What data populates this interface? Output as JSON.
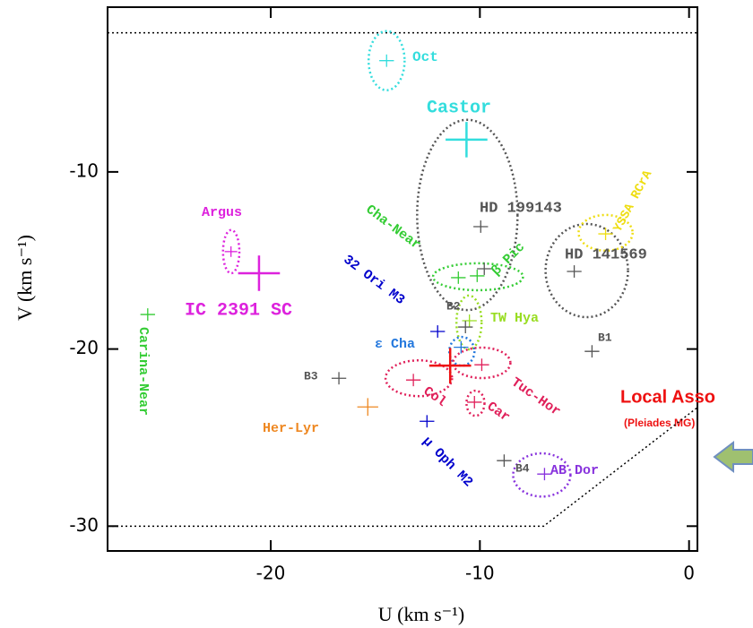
{
  "chart_data": {
    "type": "scatter",
    "xlabel": "U (km s⁻¹)",
    "ylabel": "V (km s⁻¹)",
    "xlim": [
      -27.8,
      0.4
    ],
    "ylim": [
      -31.4,
      -0.7
    ],
    "xticks": [
      -20,
      -10,
      0
    ],
    "yticks": [
      -10,
      -20,
      -30
    ],
    "points": [
      {
        "x": -14.46,
        "y": -3.72,
        "size": 0.35,
        "color": "#33dddd",
        "label": "Oct"
      },
      {
        "x": -10.64,
        "y": -8.18,
        "size": 1.0,
        "color": "#33dddd",
        "label": "Castor"
      },
      {
        "x": -9.96,
        "y": -13.09,
        "size": 0.35,
        "color": "#555555",
        "label": "HD 199143"
      },
      {
        "x": -3.99,
        "y": -13.5,
        "size": 0.35,
        "color": "#eedd11",
        "label": "YSSA RCrA"
      },
      {
        "x": -5.49,
        "y": -15.62,
        "size": 0.35,
        "color": "#555555",
        "label": "HD 141569"
      },
      {
        "x": -11.03,
        "y": -15.97,
        "size": 0.35,
        "color": "#33cc33",
        "label": "Cha-Near"
      },
      {
        "x": -10.13,
        "y": -15.87,
        "size": 0.35,
        "color": "#33cc33",
        "label": "β Pic"
      },
      {
        "x": -9.79,
        "y": -15.47,
        "size": 0.35,
        "color": "#555555"
      },
      {
        "x": -21.9,
        "y": -14.5,
        "size": 0.3,
        "color": "#dd22dd",
        "label": "Argus"
      },
      {
        "x": -20.56,
        "y": -15.72,
        "size": 1.0,
        "color": "#dd22dd",
        "label": "IC 2391 SC"
      },
      {
        "x": -25.88,
        "y": -18.05,
        "size": 0.35,
        "color": "#33cc33",
        "label": "Carina-Near"
      },
      {
        "x": -10.5,
        "y": -18.4,
        "size": 0.35,
        "color": "#99dd22",
        "label": "TW Hya"
      },
      {
        "x": -10.69,
        "y": -18.76,
        "size": 0.35,
        "color": "#555555",
        "label": "B2"
      },
      {
        "x": -12.02,
        "y": -19.01,
        "size": 0.35,
        "color": "#0000cc",
        "label": "32 Ori M3"
      },
      {
        "x": -10.9,
        "y": -19.9,
        "size": 0.35,
        "color": "#2277dd",
        "label": "ε Cha"
      },
      {
        "x": -4.64,
        "y": -20.13,
        "size": 0.35,
        "color": "#555555",
        "label": "B1"
      },
      {
        "x": -16.74,
        "y": -21.65,
        "size": 0.35,
        "color": "#555555",
        "label": "B3"
      },
      {
        "x": -11.42,
        "y": -20.94,
        "size": 1.0,
        "color": "#ee1111"
      },
      {
        "x": -9.91,
        "y": -20.89,
        "size": 0.35,
        "color": "#e0205a",
        "label": "Tuc-Hor"
      },
      {
        "x": -13.18,
        "y": -21.75,
        "size": 0.35,
        "color": "#e0205a",
        "label": "Col"
      },
      {
        "x": -10.26,
        "y": -23.0,
        "size": 0.35,
        "color": "#e0205a",
        "label": "Car"
      },
      {
        "x": -15.36,
        "y": -23.27,
        "size": 0.5,
        "color": "#ee8822",
        "label": "Her-Lyr"
      },
      {
        "x": -12.53,
        "y": -24.08,
        "size": 0.35,
        "color": "#0000cc",
        "label": "μ Oph M2"
      },
      {
        "x": -8.84,
        "y": -26.3,
        "size": 0.35,
        "color": "#555555",
        "label": "B4"
      },
      {
        "x": -6.91,
        "y": -27.06,
        "size": 0.35,
        "color": "#8833dd",
        "label": "AB Dor"
      }
    ],
    "ellipses": [
      {
        "x": -14.46,
        "y": -3.72,
        "rx": 0.86,
        "ry": 1.67,
        "color": "#33dddd"
      },
      {
        "x": -10.6,
        "y": -12.43,
        "rx": 2.4,
        "ry": 5.37,
        "color": "#555555"
      },
      {
        "x": -4.89,
        "y": -15.57,
        "rx": 1.97,
        "ry": 2.63,
        "color": "#555555"
      },
      {
        "x": -3.99,
        "y": -13.44,
        "rx": 1.29,
        "ry": 1.01,
        "color": "#eedd11"
      },
      {
        "x": -21.89,
        "y": -14.5,
        "rx": 0.39,
        "ry": 1.22,
        "color": "#dd22dd"
      },
      {
        "x": -10.09,
        "y": -15.92,
        "rx": 2.15,
        "ry": 0.76,
        "color": "#33cc33"
      },
      {
        "x": -10.52,
        "y": -18.5,
        "rx": 0.6,
        "ry": 1.52,
        "color": "#99dd22"
      },
      {
        "x": -10.86,
        "y": -20.13,
        "rx": 0.6,
        "ry": 0.81,
        "color": "#2277dd"
      },
      {
        "x": -12.92,
        "y": -21.65,
        "rx": 1.59,
        "ry": 1.01,
        "color": "#e0205a"
      },
      {
        "x": -9.91,
        "y": -20.78,
        "rx": 1.37,
        "ry": 0.86,
        "color": "#e0205a"
      },
      {
        "x": -10.21,
        "y": -23.06,
        "rx": 0.43,
        "ry": 0.71,
        "color": "#e0205a"
      },
      {
        "x": -7.04,
        "y": -27.11,
        "rx": 1.37,
        "ry": 1.22,
        "color": "#8833dd"
      }
    ],
    "boundaries": [
      {
        "x": [
          -27.8,
          0.4
        ],
        "y": [
          -2.15,
          -2.15
        ]
      },
      {
        "x": [
          -27.8,
          -6.95,
          0.4
        ],
        "y": [
          -30,
          -30,
          -23.3
        ]
      }
    ],
    "annotations": [
      "Local Asso",
      "(Pleiades MG)"
    ]
  }
}
